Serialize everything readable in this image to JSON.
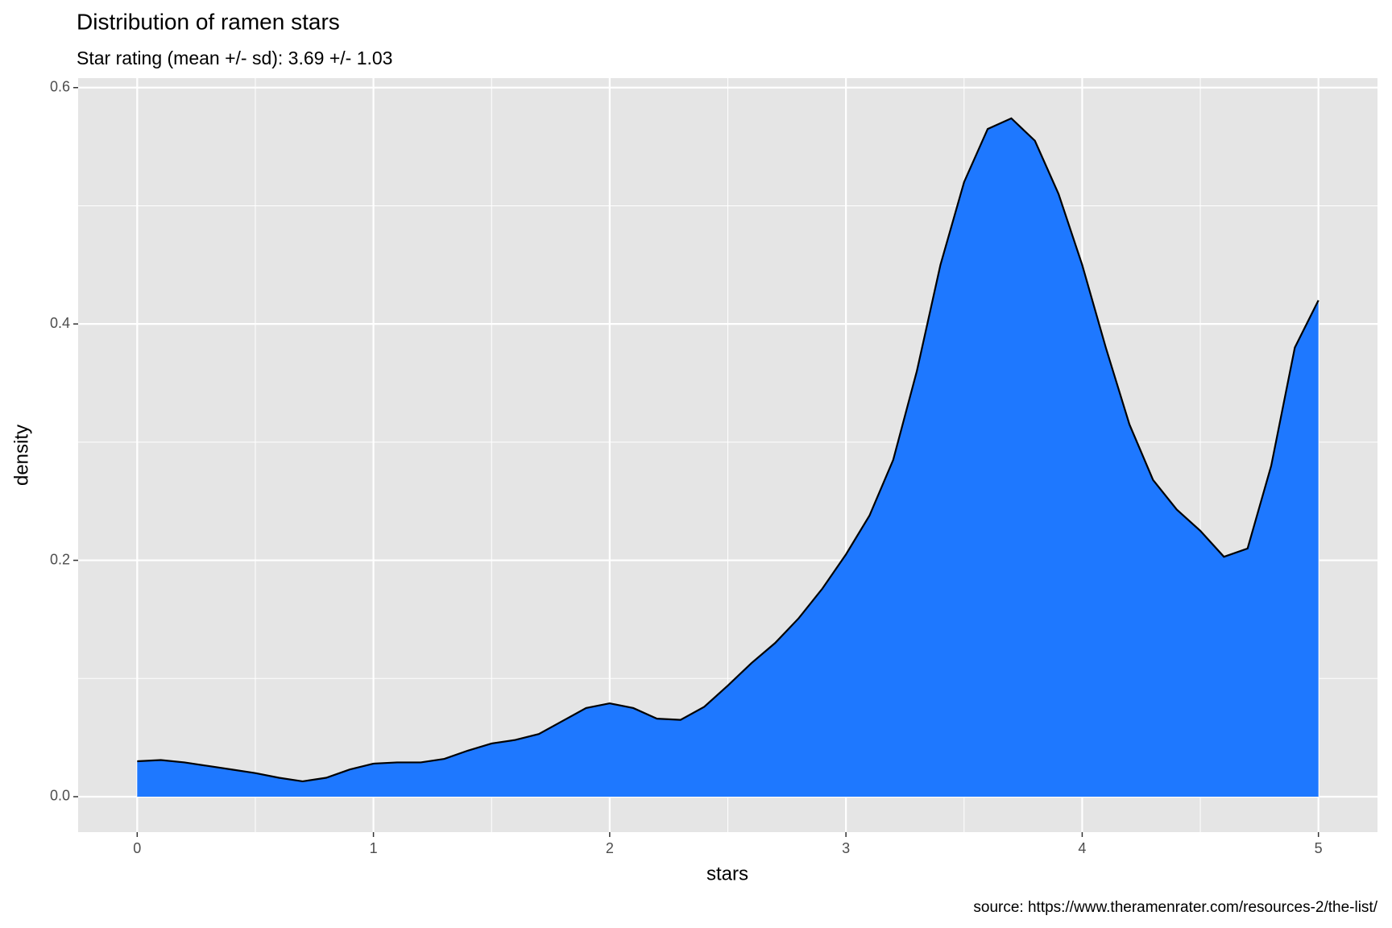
{
  "chart_data": {
    "type": "area",
    "title": "Distribution of ramen stars",
    "subtitle": "Star rating (mean +/- sd): 3.69 +/- 1.03",
    "caption": "source: https://www.theramenrater.com/resources-2/the-list/",
    "x_label": "stars",
    "y_label": "density",
    "x": [
      0,
      0.1,
      0.2,
      0.3,
      0.4,
      0.5,
      0.6,
      0.7,
      0.8,
      0.9,
      1,
      1.1,
      1.2,
      1.3,
      1.4,
      1.5,
      1.6,
      1.7,
      1.8,
      1.9,
      2,
      2.1,
      2.2,
      2.3,
      2.4,
      2.5,
      2.6,
      2.7,
      2.8,
      2.9,
      3,
      3.1,
      3.2,
      3.3,
      3.4,
      3.5,
      3.6,
      3.7,
      3.8,
      3.9,
      4,
      4.1,
      4.2,
      4.3,
      4.4,
      4.5,
      4.6,
      4.7,
      4.8,
      4.9,
      5
    ],
    "values": [
      0.03,
      0.031,
      0.029,
      0.026,
      0.023,
      0.02,
      0.016,
      0.013,
      0.016,
      0.023,
      0.028,
      0.029,
      0.029,
      0.032,
      0.039,
      0.045,
      0.048,
      0.053,
      0.064,
      0.075,
      0.079,
      0.075,
      0.066,
      0.065,
      0.076,
      0.094,
      0.113,
      0.13,
      0.151,
      0.176,
      0.205,
      0.238,
      0.285,
      0.36,
      0.45,
      0.52,
      0.565,
      0.574,
      0.555,
      0.51,
      0.45,
      0.38,
      0.315,
      0.268,
      0.243,
      0.225,
      0.203,
      0.21,
      0.28,
      0.38,
      0.42
    ],
    "color": "#1e78ff",
    "line_color": "#000000",
    "xlim": [
      -0.25,
      5.25
    ],
    "ylim": [
      -0.03,
      0.608
    ],
    "xticks": [
      0,
      1,
      2,
      3,
      4,
      5
    ],
    "yticks": [
      {
        "value": 0,
        "label": "0.0"
      },
      0.2,
      0.4,
      0.6
    ],
    "x_minor_grid": [
      0.5,
      1.5,
      2.5,
      3.5,
      4.5
    ],
    "y_minor_grid": [
      0.1,
      0.3,
      0.5
    ],
    "grid": true
  }
}
